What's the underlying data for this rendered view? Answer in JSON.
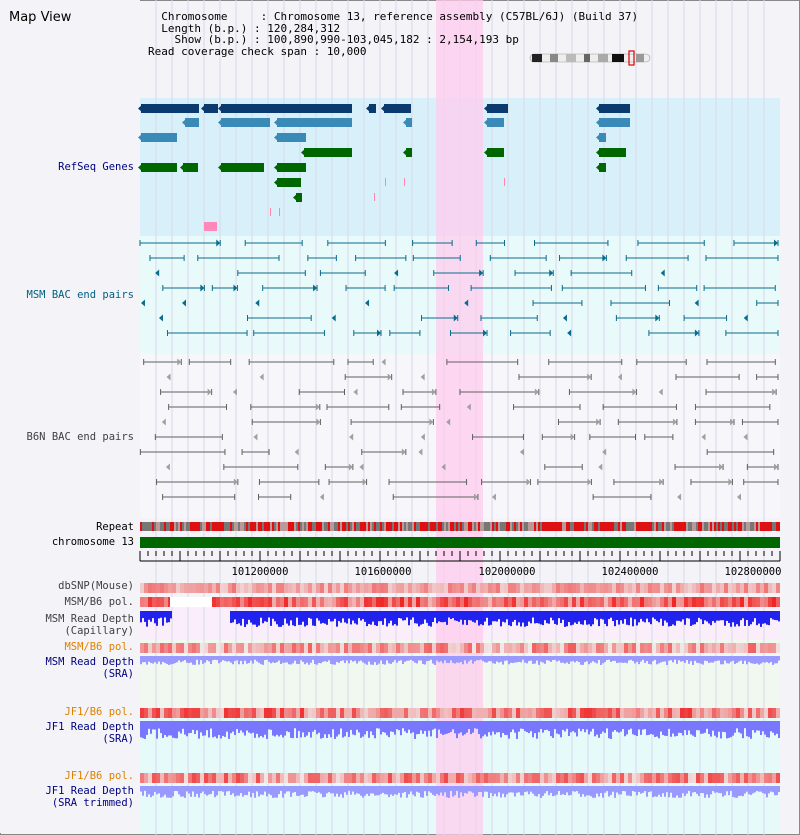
{
  "map_title": "Map View",
  "info": {
    "chromosome_key": "Chromosome",
    "chromosome_value": "Chromosome 13, reference assembly (C57BL/6J) (Build 37)",
    "length_key": "Length (b.p.)",
    "length_value": "120,284,312",
    "show_key": "Show (b.p.)",
    "show_value": "100,890,990-103,045,182 : 2,154,193 bp",
    "coverage_key": "Read coverage check span",
    "coverage_value": "10,000"
  },
  "tracks": {
    "refseq": "RefSeq Genes",
    "msm_bac": "MSM BAC end pairs",
    "b6n_bac": "B6N BAC end pairs",
    "repeat": "Repeat",
    "chromosome": "chromosome 13",
    "dbsnp": "dbSNP(Mouse)",
    "msm_b6_pol_1": "MSM/B6 pol.",
    "msm_depth_cap_1": "MSM Read Depth",
    "msm_depth_cap_2": "(Capillary)",
    "msm_b6_pol_2": "MSM/B6 pol.",
    "msm_depth_sra_1": "MSM Read Depth",
    "msm_depth_sra_2": "(SRA)",
    "jf1_b6_pol_1": "JF1/B6 pol.",
    "jf1_depth_sra_1": "JF1 Read Depth",
    "jf1_depth_sra_2": "(SRA)",
    "jf1_b6_pol_2": "JF1/B6 pol.",
    "jf1_depth_trim_1": "JF1 Read Depth",
    "jf1_depth_trim_2": "(SRA trimmed)"
  },
  "axis_ticks": [
    "101200000",
    "101600000",
    "102000000",
    "102400000",
    "102800000"
  ],
  "colors": {
    "label_blue": "#000080",
    "label_teal": "#006080",
    "label_gray": "#404040",
    "label_orange": "#e08000",
    "highlight": "#ffccee",
    "refseq_bg": "#d8f0fa",
    "msm_bac_bg": "#e8fafa",
    "gene_dark": "#0b3b6e",
    "gene_mid": "#3a8ab8",
    "gene_green": "#006600",
    "chromosome_bar": "#006600"
  }
}
